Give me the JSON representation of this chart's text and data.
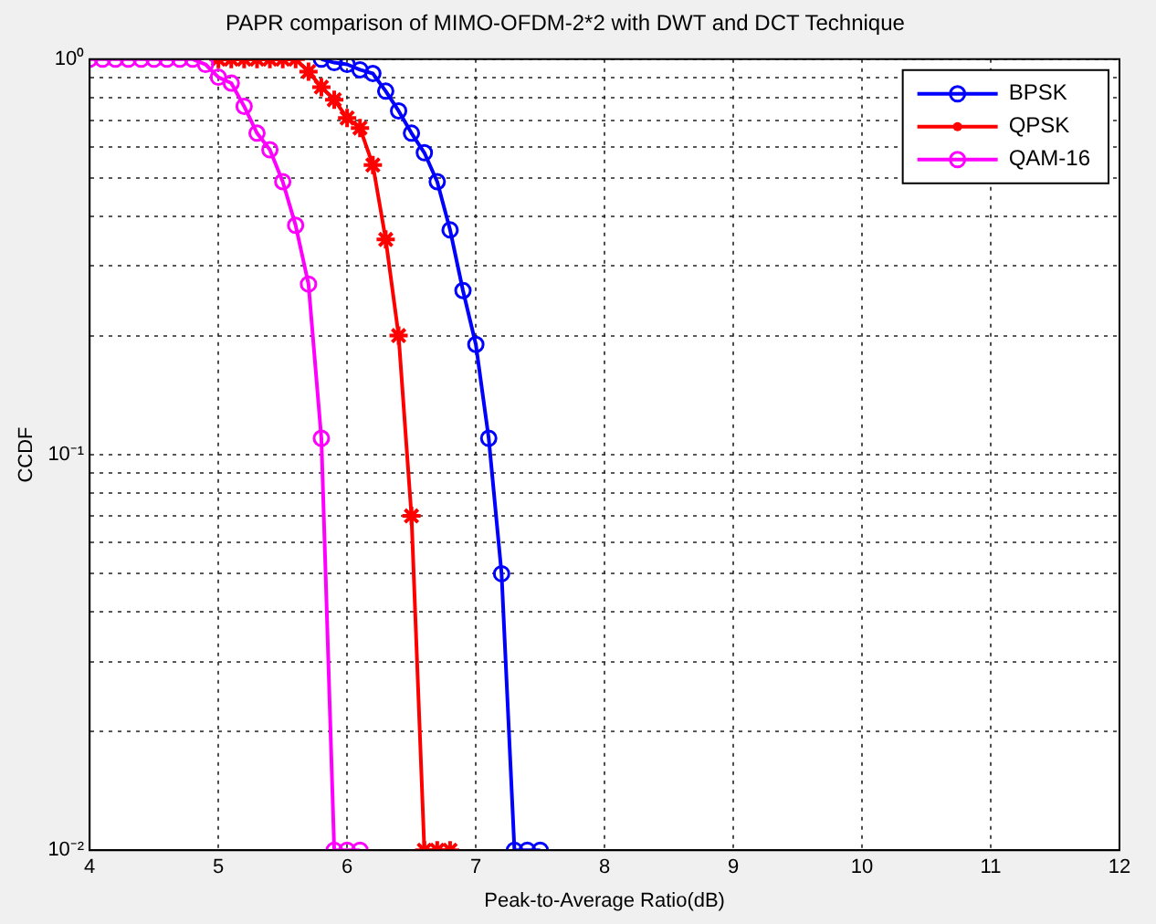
{
  "chart_data": {
    "type": "line",
    "title": "PAPR comparison of MIMO-OFDM-2*2 with DWT and DCT Technique",
    "xlabel": "Peak-to-Average Ratio(dB)",
    "ylabel": "CCDF",
    "log": "y",
    "grid": true,
    "legend": "top right",
    "line_style": "solid",
    "xlim": [
      4,
      12
    ],
    "xticks": [
      4,
      5,
      6,
      7,
      8,
      9,
      10,
      11,
      12
    ],
    "ylim": [
      0.01,
      1
    ],
    "yticks": [
      {
        "value": 0.01,
        "label": "10⁻²"
      },
      {
        "value": 0.02,
        "label": null
      },
      {
        "value": 0.03,
        "label": null
      },
      {
        "value": 0.04,
        "label": null
      },
      {
        "value": 0.05,
        "label": null
      },
      {
        "value": 0.06,
        "label": null
      },
      {
        "value": 0.07,
        "label": null
      },
      {
        "value": 0.08,
        "label": null
      },
      {
        "value": 0.09,
        "label": null
      },
      {
        "value": 0.1,
        "label": "10⁻¹"
      },
      {
        "value": 0.2,
        "label": null
      },
      {
        "value": 0.3,
        "label": null
      },
      {
        "value": 0.4,
        "label": null
      },
      {
        "value": 0.5,
        "label": null
      },
      {
        "value": 0.6,
        "label": null
      },
      {
        "value": 0.7,
        "label": null
      },
      {
        "value": 0.8,
        "label": null
      },
      {
        "value": 0.9,
        "label": null
      },
      {
        "value": 1,
        "label": "10⁰"
      }
    ],
    "x": [
      4.0,
      4.1,
      4.2,
      4.3,
      4.4,
      4.5,
      4.6,
      4.7,
      4.8,
      4.9,
      5.0,
      5.1,
      5.2,
      5.3,
      5.4,
      5.5,
      5.6,
      5.7,
      5.8,
      5.9,
      6.0,
      6.1,
      6.2,
      6.3,
      6.4,
      6.5,
      6.6,
      6.7,
      6.8,
      6.9,
      7.0,
      7.1,
      7.2,
      7.3,
      7.4,
      7.5
    ],
    "series": [
      {
        "name": "BPSK",
        "color": "#0000ff",
        "marker": "circle",
        "values": [
          null,
          null,
          null,
          null,
          null,
          null,
          null,
          null,
          null,
          null,
          null,
          null,
          null,
          null,
          null,
          null,
          null,
          null,
          1,
          0.98,
          0.97,
          0.94,
          0.92,
          0.83,
          0.74,
          0.65,
          0.58,
          0.49,
          0.37,
          0.26,
          0.19,
          0.11,
          0.05,
          0.01,
          0.01,
          0.01
        ]
      },
      {
        "name": "QPSK",
        "color": "#ff0000",
        "marker": "cross",
        "values": [
          null,
          null,
          null,
          null,
          null,
          null,
          null,
          null,
          null,
          null,
          1,
          1,
          1,
          1,
          1,
          1,
          1,
          0.93,
          0.85,
          0.79,
          0.71,
          0.67,
          0.54,
          0.35,
          0.2,
          0.07,
          0.01,
          0.01,
          0.01,
          null,
          null,
          null,
          null,
          null,
          null,
          null
        ]
      },
      {
        "name": "QAM-16",
        "color": "#ff00ff",
        "marker": "circle",
        "values": [
          1,
          1,
          1,
          1,
          1,
          1,
          1,
          1,
          1,
          0.97,
          0.9,
          0.87,
          0.76,
          0.65,
          0.59,
          0.49,
          0.38,
          0.27,
          0.11,
          0.01,
          0.01,
          0.01,
          null,
          null,
          null,
          null,
          null,
          null,
          null,
          null,
          null,
          null,
          null,
          null,
          null,
          null
        ]
      }
    ]
  }
}
